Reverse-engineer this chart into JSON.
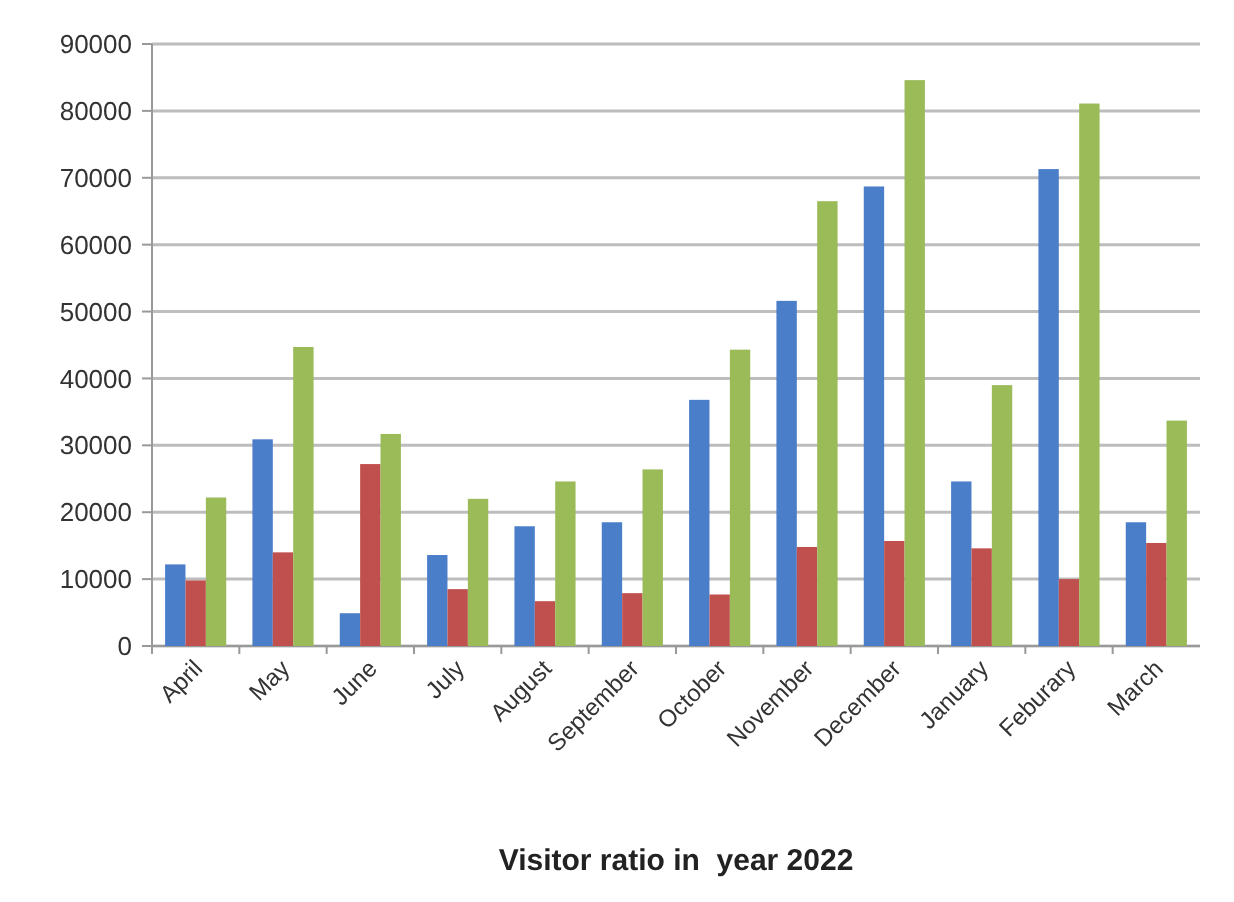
{
  "chart_data": {
    "type": "bar",
    "xlabel": "Visitor ratio in  year 2022",
    "categories": [
      "April",
      "May",
      "June",
      "July",
      "August",
      "September",
      "October",
      "November",
      "December",
      "January",
      "Feburary",
      "March"
    ],
    "series": [
      {
        "color": "#4a7ec9",
        "values": [
          12200,
          30900,
          4900,
          13600,
          17900,
          18500,
          36800,
          51600,
          68700,
          24600,
          71300,
          18500
        ]
      },
      {
        "color": "#c0504d",
        "values": [
          9800,
          14000,
          27200,
          8500,
          6700,
          7900,
          7700,
          14800,
          15700,
          14600,
          10000,
          15400
        ]
      },
      {
        "color": "#9bbb59",
        "values": [
          22200,
          44700,
          31700,
          22000,
          24600,
          26400,
          44300,
          66500,
          84600,
          39000,
          81100,
          33700
        ]
      }
    ],
    "ylim": [
      0,
      90000
    ],
    "yticks": [
      0,
      10000,
      20000,
      30000,
      40000,
      50000,
      60000,
      70000,
      80000,
      90000
    ],
    "grid": "y"
  }
}
